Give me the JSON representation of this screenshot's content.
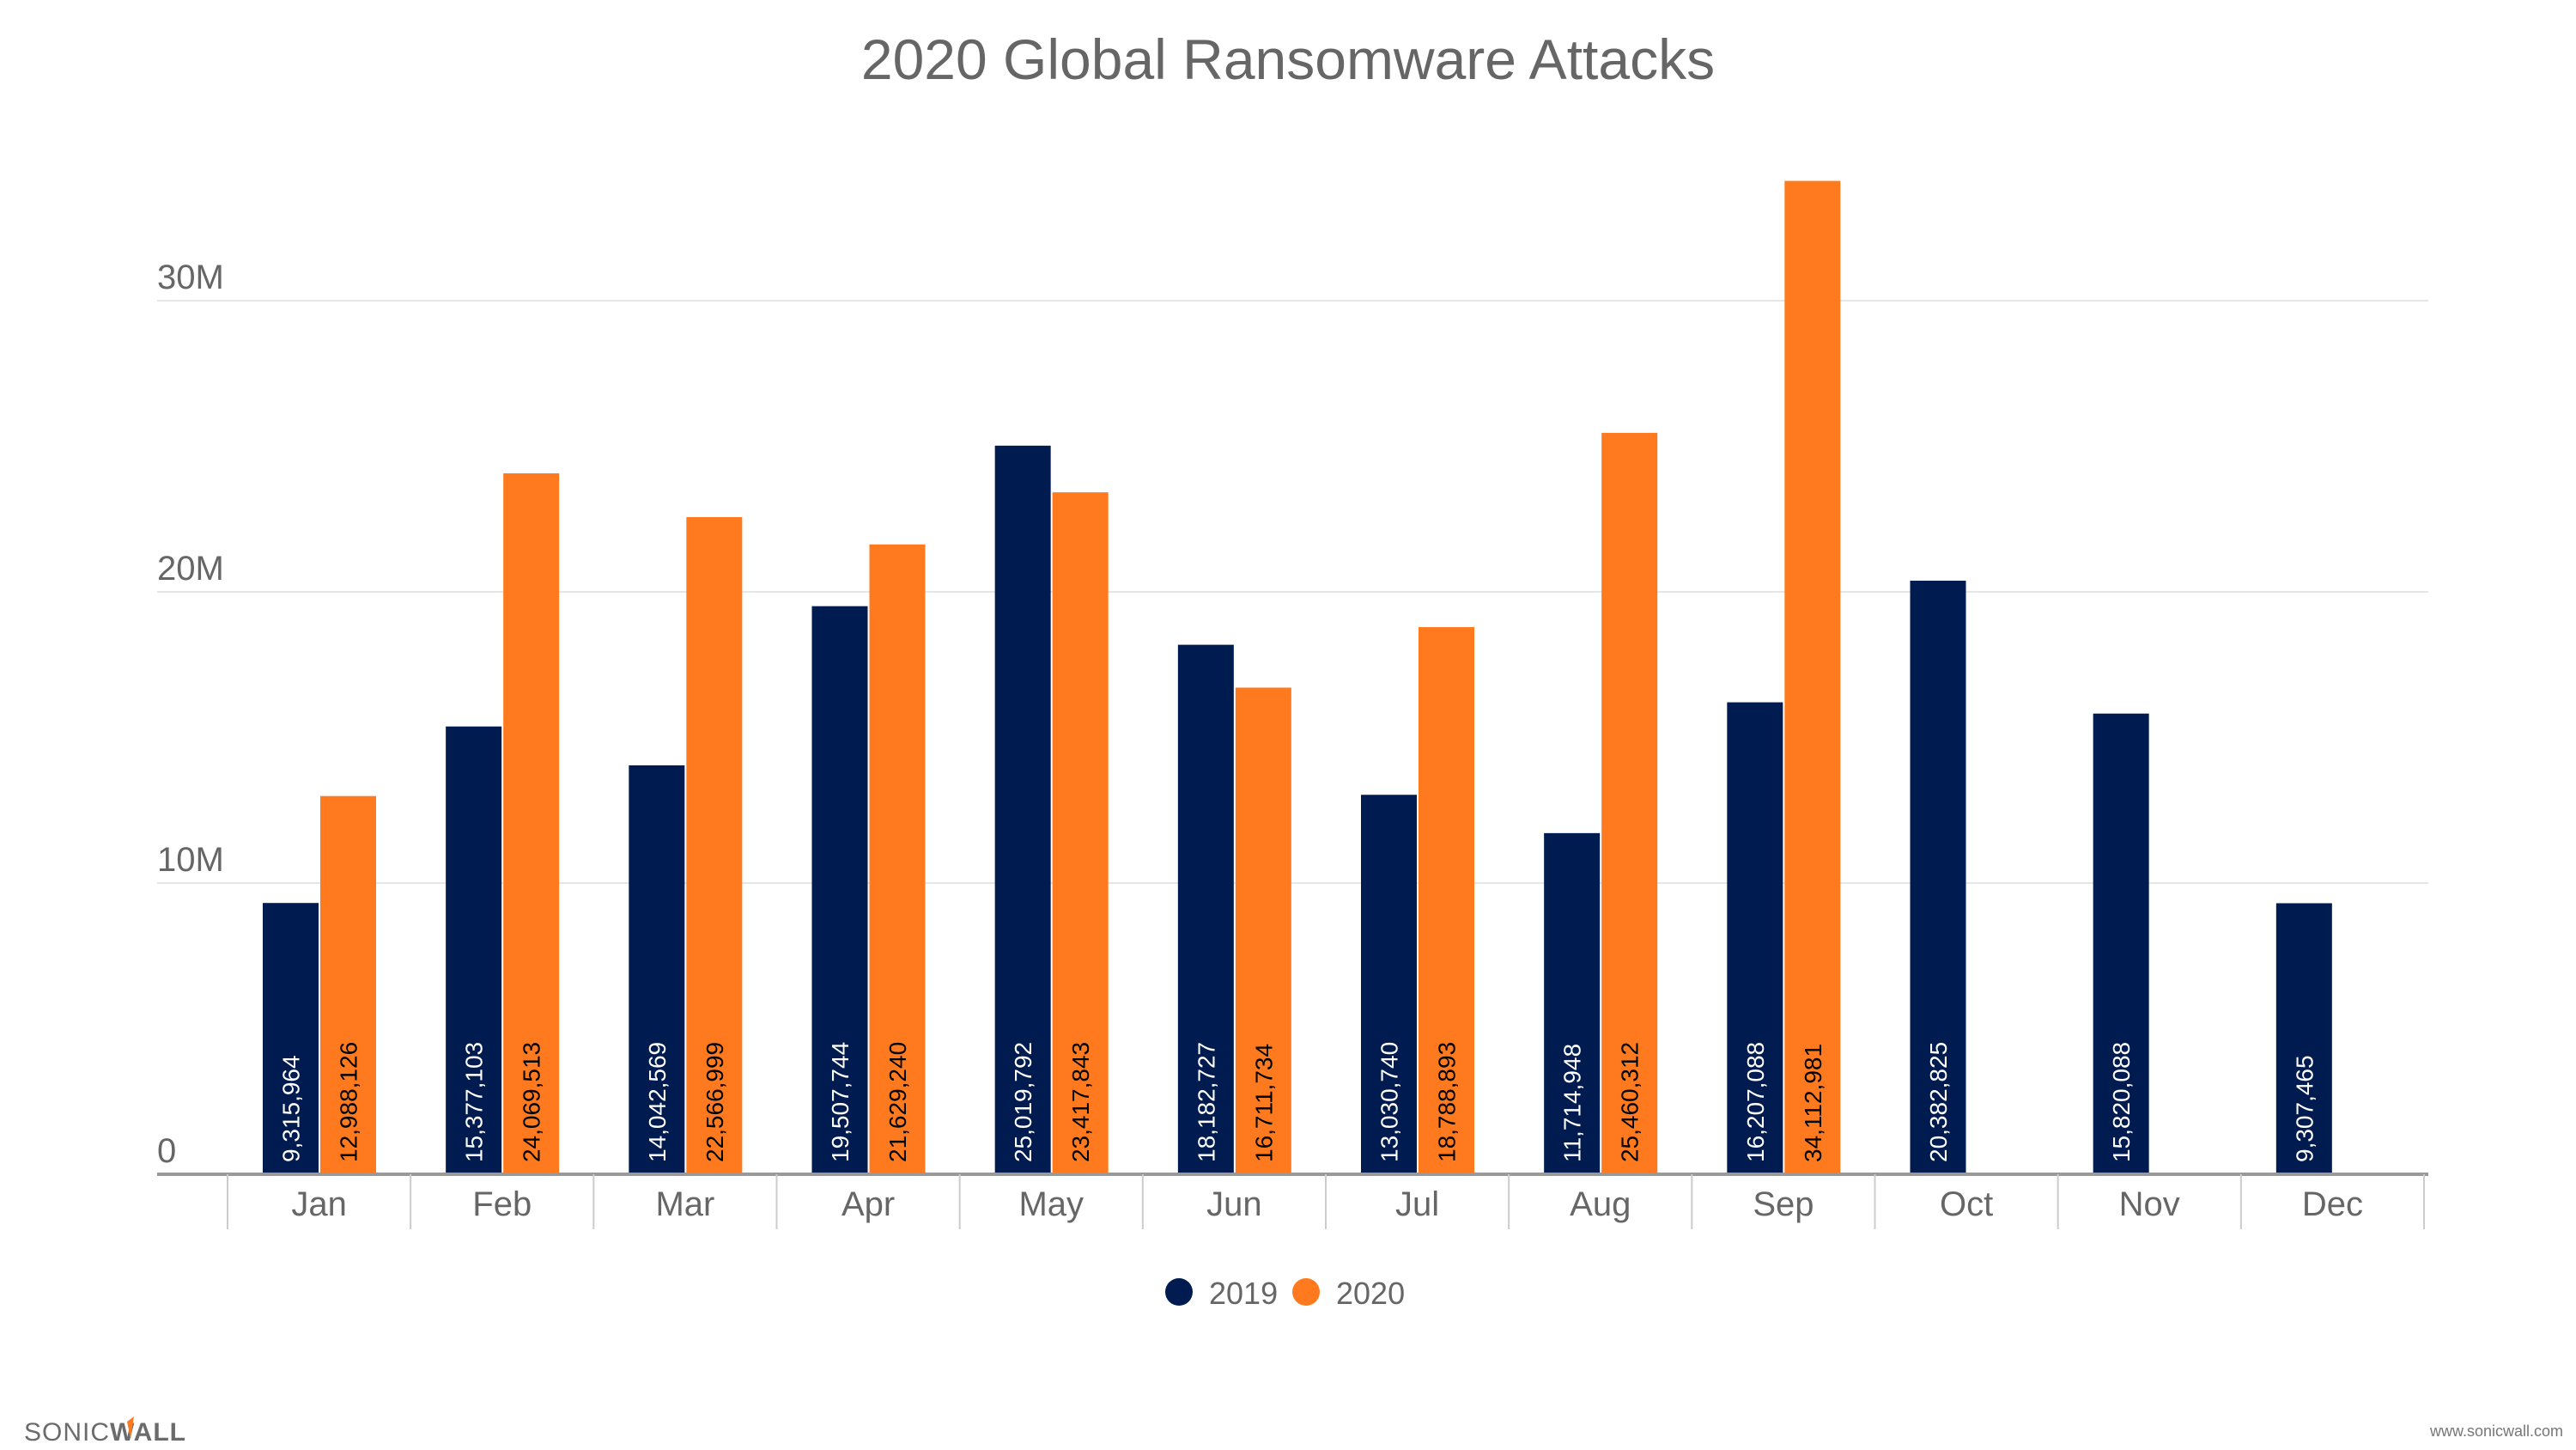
{
  "chart_data": {
    "type": "bar",
    "title": "2020 Global Ransomware Attacks",
    "xlabel": "",
    "ylabel": "",
    "ylim": [
      0,
      35000000
    ],
    "yticks": [
      0,
      10000000,
      20000000,
      30000000
    ],
    "ytick_labels": [
      "0",
      "10M",
      "20M",
      "30M"
    ],
    "grid": true,
    "legend_position": "bottom-center",
    "categories": [
      "Jan",
      "Feb",
      "Mar",
      "Apr",
      "May",
      "Jun",
      "Jul",
      "Aug",
      "Sep",
      "Oct",
      "Nov",
      "Dec"
    ],
    "series": [
      {
        "name": "2019",
        "color": "#001b4f",
        "values": [
          9315964,
          15377103,
          14042569,
          19507744,
          25019792,
          18182727,
          13030740,
          11714948,
          16207088,
          20382825,
          15820088,
          9307465
        ],
        "labels": [
          "9,315,964",
          "15,377,103",
          "14,042,569",
          "19,507,744",
          "25,019,792",
          "18,182,727",
          "13,030,740",
          "11,714,948",
          "16,207,088",
          "20,382,825",
          "15,820,088",
          "9,307,465"
        ]
      },
      {
        "name": "2020",
        "color": "#ff7a1e",
        "values": [
          12988126,
          24069513,
          22566999,
          21629240,
          23417843,
          16711734,
          18788893,
          25460312,
          34112981,
          null,
          null,
          null
        ],
        "labels": [
          "12,988,126",
          "24,069,513",
          "22,566,999",
          "21,629,240",
          "23,417,843",
          "16,711,734",
          "18,788,893",
          "25,460,312",
          "34,112,981",
          null,
          null,
          null
        ]
      }
    ]
  },
  "footer": {
    "logo_text": "SONICWALL",
    "url": "www.sonicwall.com"
  }
}
